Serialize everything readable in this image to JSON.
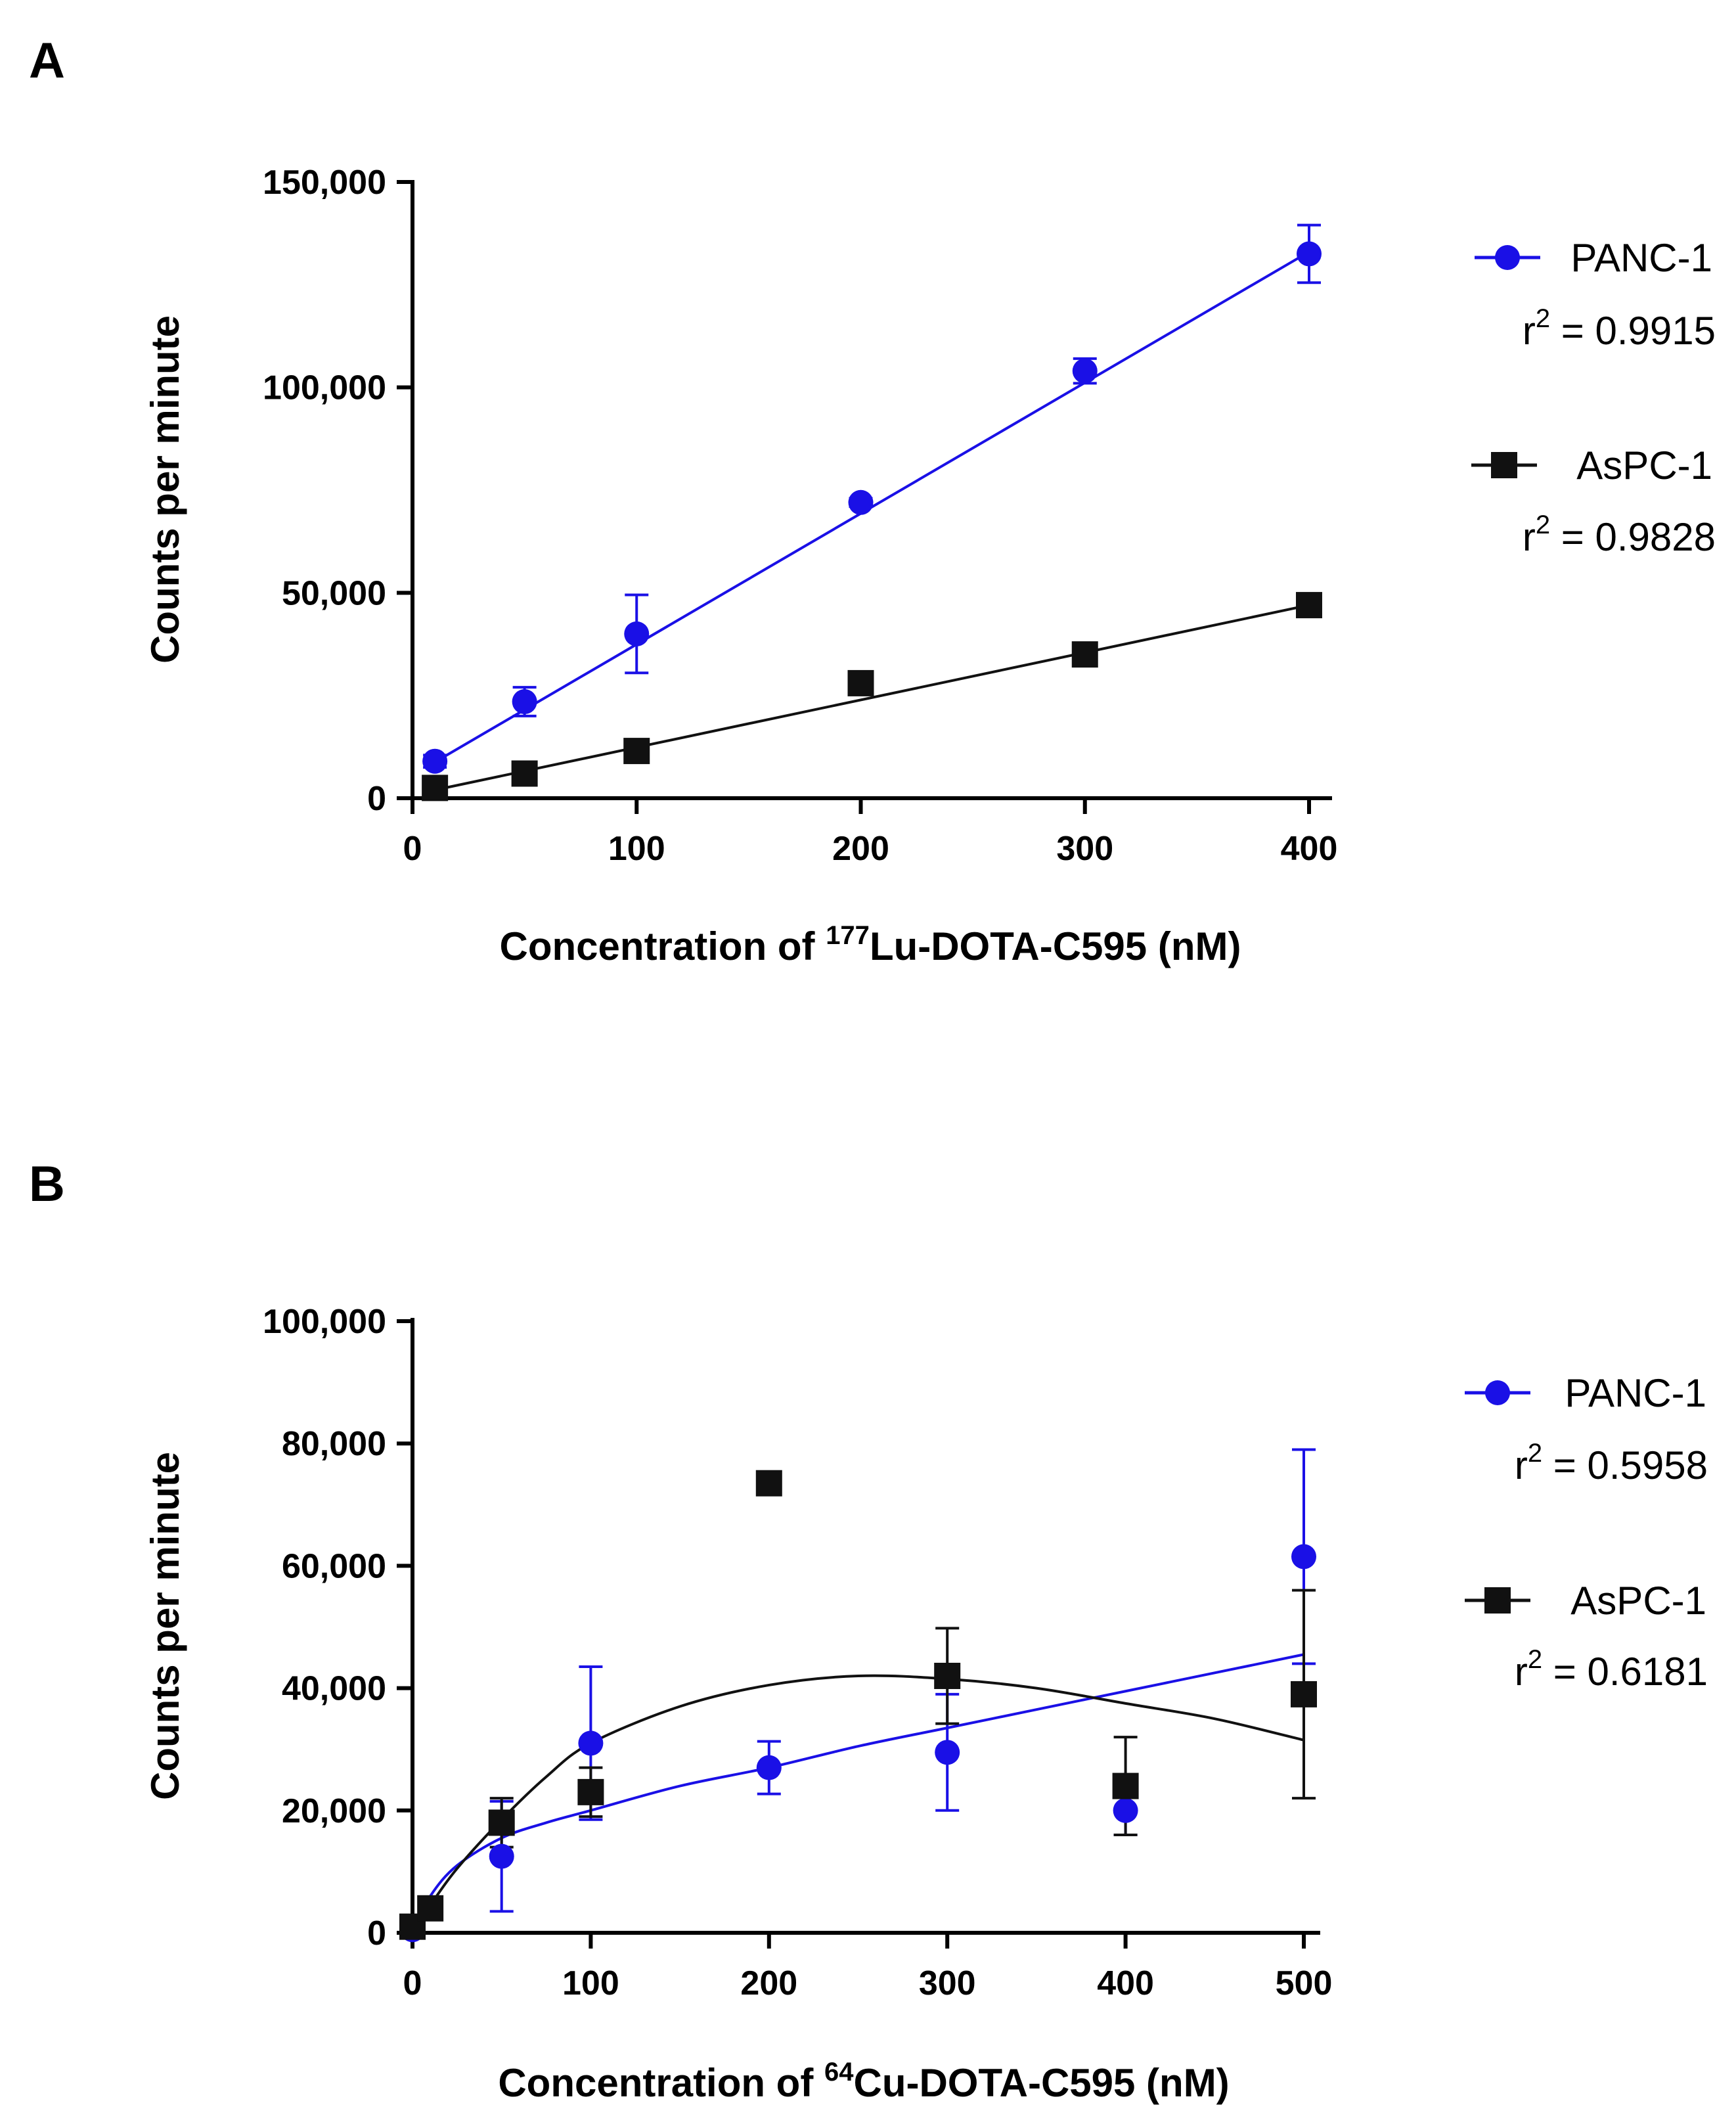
{
  "colors": {
    "panc1": "#1a10e6",
    "aspc1": "#111111",
    "axis": "#000000"
  },
  "chart_data": [
    {
      "panel_label": "A",
      "type": "scatter",
      "xlabel_prefix": "Concentration of ",
      "xlabel_isotope": "177",
      "xlabel_suffix": "Lu-DOTA-C595 (nM)",
      "ylabel": "Counts per minute",
      "xlim": [
        0,
        400
      ],
      "ylim": [
        0,
        150000
      ],
      "xticks": [
        0,
        100,
        200,
        300,
        400
      ],
      "xtick_labels": [
        "0",
        "100",
        "200",
        "300",
        "400"
      ],
      "yticks": [
        0,
        50000,
        100000,
        150000
      ],
      "ytick_labels": [
        "0",
        "50,000",
        "100,000",
        "150,000"
      ],
      "series": [
        {
          "name": "PANC-1",
          "r2_label": "r",
          "r2_sup": "2",
          "r2_value": " = 0.9915",
          "marker": "circle",
          "fit": "linear",
          "x": [
            10,
            50,
            100,
            200,
            300,
            400
          ],
          "y": [
            9000,
            23500,
            40000,
            72000,
            104000,
            132500
          ],
          "err": [
            1500,
            3500,
            9500,
            1000,
            3000,
            7000
          ],
          "fit_x": [
            10,
            400
          ],
          "fit_y": [
            8800,
            133000
          ]
        },
        {
          "name": "AsPC-1",
          "r2_label": "r",
          "r2_sup": "2",
          "r2_value": " = 0.9828",
          "marker": "square",
          "fit": "linear",
          "x": [
            10,
            50,
            100,
            200,
            300,
            400
          ],
          "y": [
            2500,
            6000,
            11500,
            28000,
            35000,
            47000
          ],
          "err": [
            500,
            800,
            800,
            800,
            800,
            1500
          ],
          "fit_x": [
            10,
            400
          ],
          "fit_y": [
            2000,
            47000
          ]
        }
      ]
    },
    {
      "panel_label": "B",
      "type": "scatter",
      "xlabel_prefix": "Concentration of ",
      "xlabel_isotope": "64",
      "xlabel_suffix": "Cu-DOTA-C595 (nM)",
      "ylabel": "Counts per minute",
      "xlim": [
        0,
        500
      ],
      "ylim": [
        0,
        100000
      ],
      "xticks": [
        0,
        100,
        200,
        300,
        400,
        500
      ],
      "xtick_labels": [
        "0",
        "100",
        "200",
        "300",
        "400",
        "500"
      ],
      "yticks": [
        0,
        20000,
        40000,
        60000,
        80000,
        100000
      ],
      "ytick_labels": [
        "0",
        "20,000",
        "40,000",
        "60,000",
        "80,000",
        "100,000"
      ],
      "series": [
        {
          "name": "PANC-1",
          "r2_label": "r",
          "r2_sup": "2",
          "r2_value": " = 0.5958",
          "marker": "circle",
          "fit": "curve",
          "x": [
            0,
            10,
            50,
            100,
            200,
            300,
            400,
            500
          ],
          "y": [
            500,
            4000,
            12500,
            31000,
            27000,
            29500,
            20000,
            61500
          ],
          "err": [
            300,
            800,
            9000,
            12500,
            4300,
            9500,
            4000,
            17500
          ],
          "fit_x": [
            0,
            10,
            25,
            50,
            75,
            100,
            150,
            200,
            250,
            300,
            350,
            400,
            450,
            500
          ],
          "fit_y": [
            0,
            6000,
            11000,
            15500,
            18000,
            20000,
            24000,
            27000,
            30500,
            33500,
            36500,
            39500,
            42500,
            45500
          ]
        },
        {
          "name": "AsPC-1",
          "r2_label": "r",
          "r2_sup": "2",
          "r2_value": " = 0.6181",
          "marker": "square",
          "fit": "curve",
          "x": [
            0,
            10,
            50,
            100,
            200,
            300,
            400,
            500
          ],
          "y": [
            1000,
            4000,
            18000,
            23000,
            73500,
            42000,
            24000,
            39000
          ],
          "err": [
            300,
            800,
            4000,
            4000,
            800,
            7800,
            8000,
            17000
          ],
          "fit_x": [
            0,
            10,
            25,
            50,
            75,
            100,
            150,
            200,
            250,
            300,
            350,
            400,
            450,
            500
          ],
          "fit_y": [
            0,
            4500,
            10500,
            18500,
            25500,
            31000,
            37000,
            40500,
            42000,
            41500,
            40000,
            37500,
            35000,
            31500
          ]
        }
      ]
    }
  ]
}
